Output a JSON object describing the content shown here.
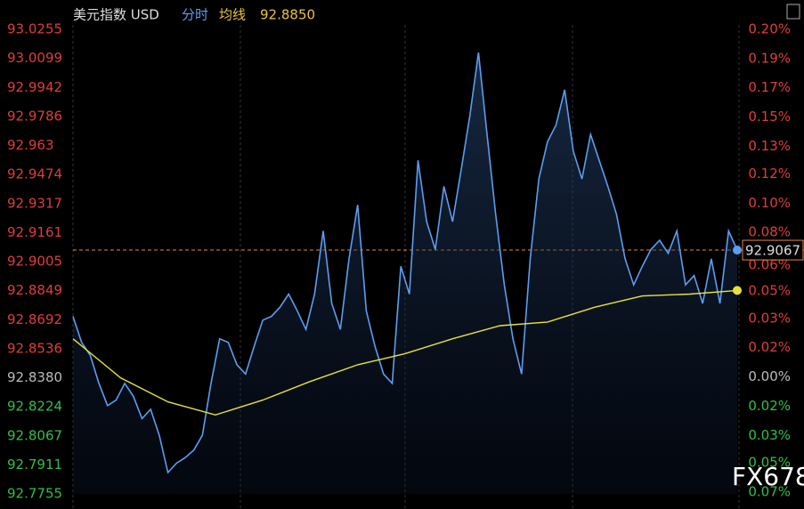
{
  "chart_data": {
    "type": "line",
    "title": "美元指数 USD",
    "mode_label": "分时",
    "avg_label": "均线",
    "avg_value": "92.8850",
    "ylim": [
      92.7755,
      93.0255
    ],
    "yticks": [
      93.0255,
      93.0099,
      92.9942,
      92.9786,
      92.963,
      92.9474,
      92.9317,
      92.9161,
      92.9005,
      92.8849,
      92.8692,
      92.8536,
      {
        "value": 92.838,
        "label": "92.8380"
      },
      92.8224,
      92.8067,
      92.7911,
      92.7755
    ],
    "y2lim": [
      -0.068,
      0.202
    ],
    "y2ticks": [
      {
        "value": 0.202,
        "label": "0.20%"
      },
      {
        "value": 0.185,
        "label": "0.19%"
      },
      {
        "value": 0.168,
        "label": "0.17%"
      },
      {
        "value": 0.151,
        "label": "0.15%"
      },
      {
        "value": 0.134,
        "label": "0.13%"
      },
      {
        "value": 0.118,
        "label": "0.12%"
      },
      {
        "value": 0.101,
        "label": "0.10%"
      },
      {
        "value": 0.084,
        "label": "0.08%"
      },
      {
        "value": 0.0649,
        "label": "0.06%"
      },
      {
        "value": 0.05,
        "label": "0.05%"
      },
      {
        "value": 0.034,
        "label": "0.03%"
      },
      {
        "value": 0.017,
        "label": "0.02%"
      },
      {
        "value": 0,
        "label": "0.00%"
      },
      {
        "value": -0.017,
        "label": "0.02%"
      },
      {
        "value": -0.034,
        "label": "0.03%"
      },
      {
        "value": -0.05,
        "label": "0.05%"
      },
      {
        "value": -0.067,
        "label": "0.07%"
      }
    ],
    "current": {
      "value": 92.9067,
      "label": "92.9067"
    },
    "watermark": "FX678",
    "series": [
      {
        "name": "分时",
        "color": "#5b9ef0",
        "values": [
          92.871,
          92.857,
          92.85,
          92.835,
          92.823,
          92.826,
          92.835,
          92.828,
          92.816,
          92.821,
          92.807,
          92.787,
          92.792,
          92.795,
          92.799,
          92.807,
          92.835,
          92.859,
          92.857,
          92.845,
          92.84,
          92.855,
          92.869,
          92.871,
          92.876,
          92.883,
          92.874,
          92.864,
          92.883,
          92.917,
          92.878,
          92.864,
          92.902,
          92.931,
          92.874,
          92.855,
          92.84,
          92.835,
          92.898,
          92.883,
          92.955,
          92.922,
          92.907,
          92.941,
          92.922,
          92.95,
          92.979,
          93.013,
          92.969,
          92.926,
          92.888,
          92.859,
          92.84,
          92.902,
          92.945,
          92.965,
          92.974,
          92.993,
          92.96,
          92.945,
          92.969,
          92.955,
          92.941,
          92.926,
          92.902,
          92.888,
          92.898,
          92.907,
          92.912,
          92.905,
          92.917,
          92.888,
          92.893,
          92.878,
          92.902,
          92.878,
          92.917,
          92.9067
        ]
      },
      {
        "name": "均线",
        "color": "#e8e23a",
        "values": [
          92.859,
          92.838,
          92.825,
          92.818,
          92.826,
          92.836,
          92.845,
          92.851,
          92.859,
          92.866,
          92.868,
          92.876,
          92.882,
          92.883,
          92.885
        ]
      }
    ]
  }
}
